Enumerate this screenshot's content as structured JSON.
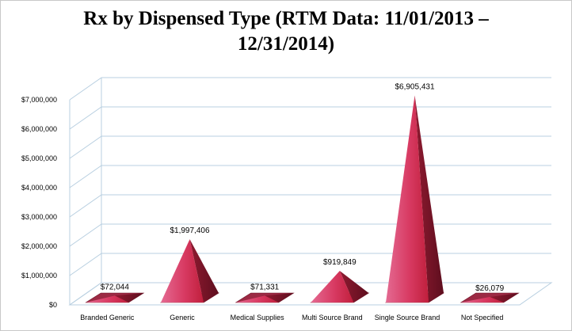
{
  "chart_data": {
    "type": "bar",
    "title_line1": "Rx by Dispensed Type (RTM Data: 11/01/2013 –",
    "title_line2": "12/31/2014)",
    "categories": [
      "Branded Generic",
      "Generic",
      "Medical Supplies",
      "Multi Source Brand",
      "Single Source Brand",
      "Not Specified"
    ],
    "values": [
      72044,
      1997406,
      71331,
      919849,
      6905431,
      26079
    ],
    "data_labels": [
      "$72,044",
      "$1,997,406",
      "$71,331",
      "$919,849",
      "$6,905,431",
      "$26,079"
    ],
    "y_ticks": [
      0,
      1000000,
      2000000,
      3000000,
      4000000,
      5000000,
      6000000,
      7000000
    ],
    "y_tick_labels": [
      "$0",
      "$1,000,000",
      "$2,000,000",
      "$3,000,000",
      "$4,000,000",
      "$5,000,000",
      "$6,000,000",
      "$7,000,000"
    ],
    "ylim": [
      0,
      7000000
    ],
    "mark_shape": "pyramid",
    "grid": true,
    "legend": "none",
    "colors": {
      "bar_light": "#e0608a",
      "bar_mid": "#c8223f",
      "bar_dark": "#7a1428",
      "bar_top": "#a8324a",
      "grid": "#b8cfe0"
    }
  }
}
